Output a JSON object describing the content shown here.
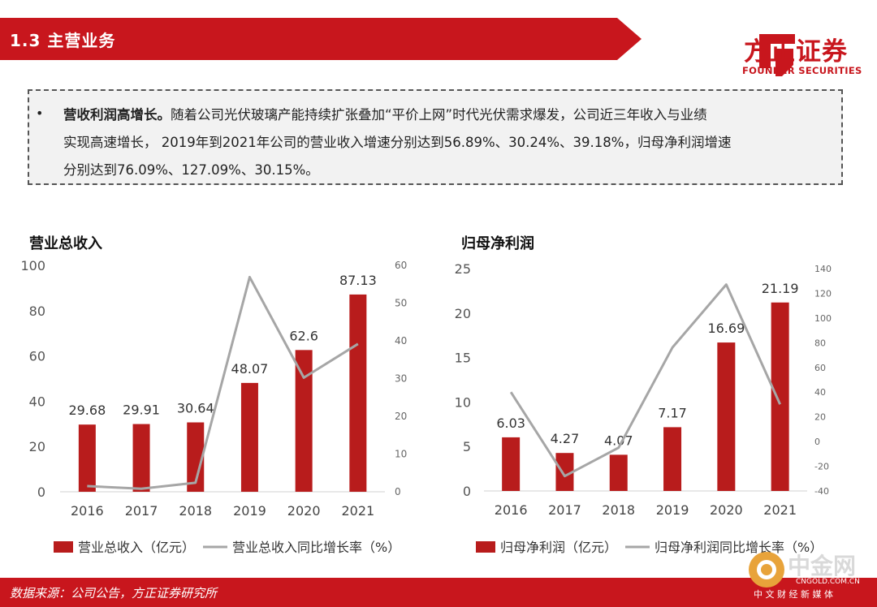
{
  "header": {
    "section_title": "1.3 主营业务"
  },
  "logo": {
    "name_cn": "方正证券",
    "name_en": "FOUNDER SECURITIES"
  },
  "summary": {
    "bullet": "•",
    "lead": "营收利润高增长。",
    "line1_rest": "随着公司光伏玻璃产能持续扩张叠加“平价上网”时代光伏需求爆发，公司近三年收入与业绩",
    "line2": "实现高速增长， 2019年到2021年公司的营业收入增速分别达到56.89%、30.24%、39.18%，归母净利润增速",
    "line3": "分别达到76.09%、127.09%、30.15%。"
  },
  "chart_data": [
    {
      "type": "bar",
      "title": "营业总收入",
      "categories": [
        "2016",
        "2017",
        "2018",
        "2019",
        "2020",
        "2021"
      ],
      "series": [
        {
          "name": "营业总收入（亿元）",
          "type": "bar",
          "axis": "left",
          "values": [
            29.68,
            29.91,
            30.64,
            48.07,
            62.6,
            87.13
          ],
          "labels": [
            "29.68",
            "29.91",
            "30.64",
            "48.07",
            "62.6",
            "87.13"
          ]
        },
        {
          "name": "营业总收入同比增长率（%）",
          "type": "line",
          "axis": "right",
          "values": [
            1.5,
            0.8,
            2.4,
            56.89,
            30.24,
            39.18
          ]
        }
      ],
      "ylim_left": [
        0,
        100
      ],
      "yticks_left": [
        "0",
        "20",
        "40",
        "60",
        "80",
        "100"
      ],
      "ylim_right": [
        0,
        60
      ],
      "yticks_right": [
        "0",
        "10",
        "20",
        "30",
        "40",
        "50",
        "60"
      ],
      "colors": {
        "bar": "#b81c1c",
        "line": "#a6a6a6"
      },
      "legend": "bottom"
    },
    {
      "type": "bar",
      "title": "归母净利润",
      "categories": [
        "2016",
        "2017",
        "2018",
        "2019",
        "2020",
        "2021"
      ],
      "series": [
        {
          "name": "归母净利润（亿元）",
          "type": "bar",
          "axis": "left",
          "values": [
            6.03,
            4.27,
            4.07,
            7.17,
            16.69,
            21.19
          ],
          "labels": [
            "6.03",
            "4.27",
            "4.07",
            "7.17",
            "16.69",
            "21.19"
          ]
        },
        {
          "name": "归母净利润同比增长率（%）",
          "type": "line",
          "axis": "right",
          "values": [
            40,
            -28,
            -5,
            76.09,
            127.09,
            30.15
          ]
        }
      ],
      "ylim_left": [
        0,
        25
      ],
      "yticks_left": [
        "0",
        "5",
        "10",
        "15",
        "20",
        "25"
      ],
      "ylim_right": [
        -40,
        140
      ],
      "yticks_right": [
        "-40",
        "-20",
        "0",
        "20",
        "40",
        "60",
        "80",
        "100",
        "120",
        "140"
      ],
      "colors": {
        "bar": "#b81c1c",
        "line": "#a6a6a6"
      },
      "legend": "bottom"
    }
  ],
  "footer": {
    "source": "数据来源：公司公告，方正证券研究所"
  },
  "watermark": {
    "name_cn": "中金网",
    "domain": "CNGOLD.COM.CN",
    "tagline": "中 文 财 经 新 媒 体"
  }
}
